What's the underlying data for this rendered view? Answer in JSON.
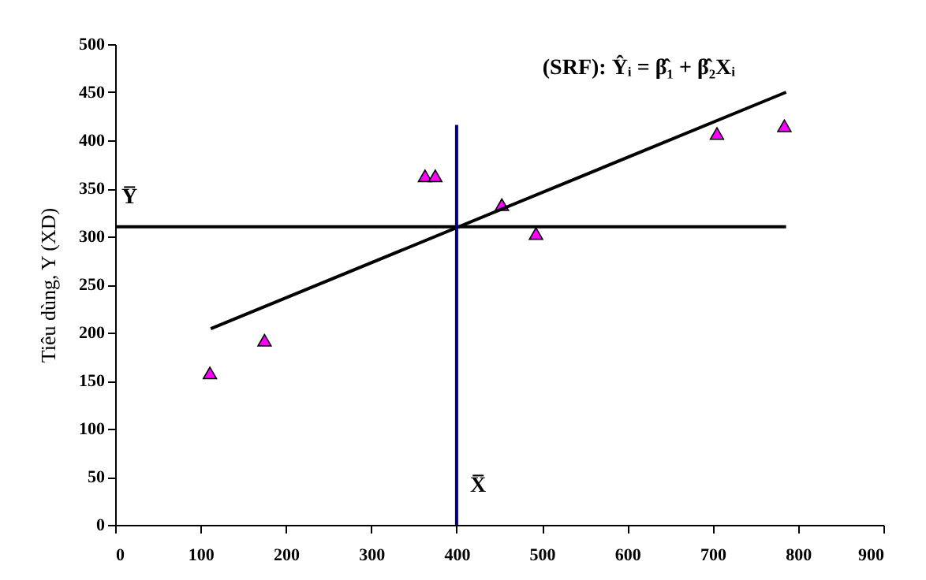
{
  "chart_data": {
    "type": "scatter",
    "ylabel": "Tiêu dùng, Y (XD)",
    "xlim": [
      0,
      900
    ],
    "xticks": [
      0,
      100,
      200,
      300,
      400,
      500,
      600,
      700,
      800,
      900
    ],
    "ylim": [
      0,
      500
    ],
    "yticks": [
      0,
      50,
      100,
      150,
      200,
      250,
      300,
      350,
      400,
      450,
      500
    ],
    "grid": false,
    "series": [
      {
        "marker": "triangle",
        "color": "#ff00ff",
        "x": [
          111,
          175,
          363,
          375,
          453,
          493,
          705,
          784
        ],
        "values": [
          158,
          192,
          363,
          363,
          333,
          303,
          407,
          415
        ]
      },
      {
        "type": "line",
        "color": "#000000",
        "x": [
          112,
          786
        ],
        "values": [
          204,
          450
        ]
      },
      {
        "type": "line",
        "color": "#000000",
        "x": [
          0,
          786
        ],
        "values": [
          310,
          310
        ]
      },
      {
        "type": "line",
        "color": "#000080",
        "x": [
          400,
          400
        ],
        "values": [
          0,
          416
        ]
      }
    ],
    "annotations": [
      "(SRF): Ŷᵢ = β̂₁ + β̂₂Xᵢ",
      "Y̅",
      "X̅"
    ]
  }
}
